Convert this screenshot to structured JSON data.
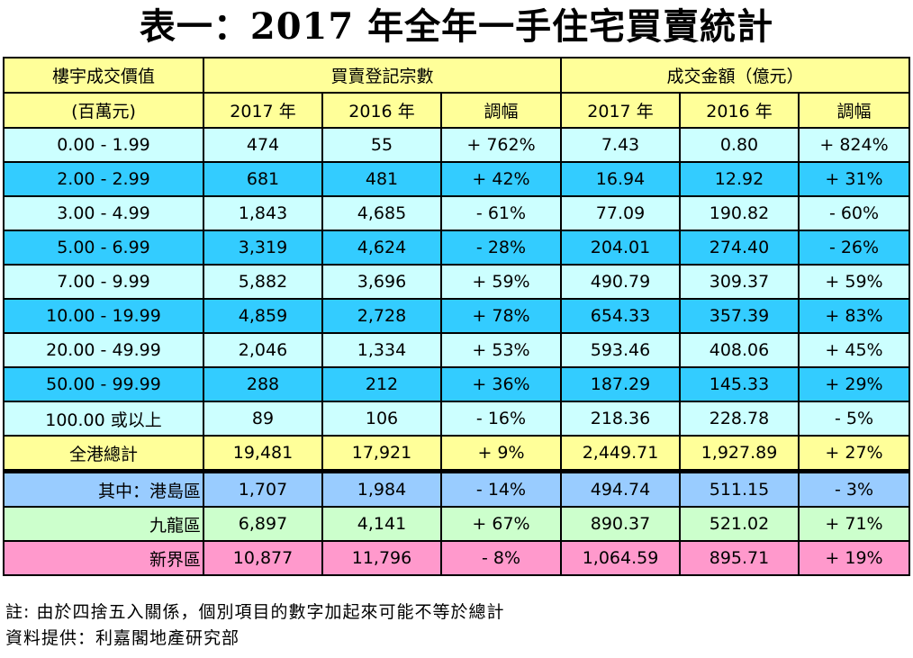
{
  "title": "表一：2017 年全年一手住宅買賣統計",
  "header": {
    "col1_line1": "樓宇成交價值",
    "col1_line2": "(百萬元)",
    "group1": "買賣登記宗數",
    "group2": "成交金額（億元）",
    "y2017": "2017 年",
    "y2016": "2016 年",
    "change": "調幅"
  },
  "rows": [
    {
      "label": "0.00 - 1.99",
      "c2017": "474",
      "c2016": "55",
      "cchg": "+ 762%",
      "v2017": "7.43",
      "v2016": "0.80",
      "vchg": "+ 824%"
    },
    {
      "label": "2.00 - 2.99",
      "c2017": "681",
      "c2016": "481",
      "cchg": "+ 42%",
      "v2017": "16.94",
      "v2016": "12.92",
      "vchg": "+ 31%"
    },
    {
      "label": "3.00 - 4.99",
      "c2017": "1,843",
      "c2016": "4,685",
      "cchg": "- 61%",
      "v2017": "77.09",
      "v2016": "190.82",
      "vchg": "- 60%"
    },
    {
      "label": "5.00 - 6.99",
      "c2017": "3,319",
      "c2016": "4,624",
      "cchg": "- 28%",
      "v2017": "204.01",
      "v2016": "274.40",
      "vchg": "- 26%"
    },
    {
      "label": "7.00 - 9.99",
      "c2017": "5,882",
      "c2016": "3,696",
      "cchg": "+ 59%",
      "v2017": "490.79",
      "v2016": "309.37",
      "vchg": "+ 59%"
    },
    {
      "label": "10.00 - 19.99",
      "c2017": "4,859",
      "c2016": "2,728",
      "cchg": "+ 78%",
      "v2017": "654.33",
      "v2016": "357.39",
      "vchg": "+ 83%"
    },
    {
      "label": "20.00 - 49.99",
      "c2017": "2,046",
      "c2016": "1,334",
      "cchg": "+ 53%",
      "v2017": "593.46",
      "v2016": "408.06",
      "vchg": "+ 45%"
    },
    {
      "label": "50.00 - 99.99",
      "c2017": "288",
      "c2016": "212",
      "cchg": "+ 36%",
      "v2017": "187.29",
      "v2016": "145.33",
      "vchg": "+ 29%"
    },
    {
      "label": "100.00 或以上",
      "c2017": "89",
      "c2016": "106",
      "cchg": "- 16%",
      "v2017": "218.36",
      "v2016": "228.78",
      "vchg": "- 5%"
    }
  ],
  "total": {
    "label": "全港總計",
    "c2017": "19,481",
    "c2016": "17,921",
    "cchg": "+ 9%",
    "v2017": "2,449.71",
    "v2016": "1,927.89",
    "vchg": "+ 27%"
  },
  "regions": [
    {
      "label": "其中：港島區",
      "c2017": "1,707",
      "c2016": "1,984",
      "cchg": "- 14%",
      "v2017": "494.74",
      "v2016": "511.15",
      "vchg": "- 3%"
    },
    {
      "label": "九龍區",
      "c2017": "6,897",
      "c2016": "4,141",
      "cchg": "+ 67%",
      "v2017": "890.37",
      "v2016": "521.02",
      "vchg": "+ 71%"
    },
    {
      "label": "新界區",
      "c2017": "10,877",
      "c2016": "11,796",
      "cchg": "- 8%",
      "v2017": "1,064.59",
      "v2016": "895.71",
      "vchg": "+ 19%"
    }
  ],
  "notes": {
    "note": "註:  由於四捨五入關係，個別項目的數字加起來可能不等於總計",
    "source": "資料提供：利嘉閣地產研究部"
  }
}
